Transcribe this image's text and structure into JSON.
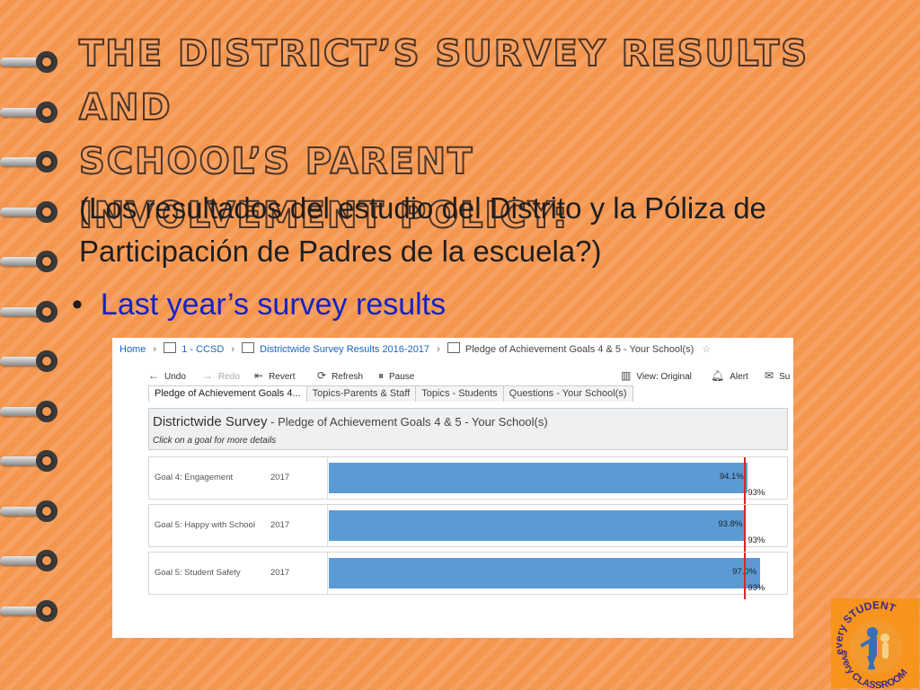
{
  "slide": {
    "title_lines": [
      "THE DISTRICT’S SURVEY RESULTS AND",
      "SCHOOL’S PARENT",
      "INVOLVEMENT POLICY:"
    ],
    "subtitle": "(Los resultados del estudio del Distrito y la Póliza de Participación de Padres de la escuela?)",
    "bullet": "Last year’s survey results"
  },
  "breadcrumb": {
    "home": "Home",
    "project": "1 - CCSD",
    "workbook": "Districtwide Survey Results 2016-2017",
    "view": "Pledge of Achievement Goals 4 & 5 - Your School(s)"
  },
  "toolbar": {
    "undo": "Undo",
    "redo": "Redo",
    "revert": "Revert",
    "refresh": "Refresh",
    "pause": "Pause",
    "view_original": "View: Original",
    "alert": "Alert",
    "subscribe": "Su"
  },
  "tabs": [
    {
      "label": "Pledge of Achievement Goals 4..."
    },
    {
      "label": "Topics-Parents & Staff"
    },
    {
      "label": "Topics - Students"
    },
    {
      "label": "Questions - Your School(s)"
    }
  ],
  "dashboard": {
    "title": "Districtwide Survey",
    "subtitle": " - Pledge of Achievement Goals 4 & 5 - Your School(s)",
    "hint": "Click on a goal for more details"
  },
  "goals": [
    {
      "label": "Goal 4: Engagement",
      "year": "2017",
      "value": 94.1,
      "value_label": "94.1%",
      "target_label": "93%"
    },
    {
      "label": "Goal 5: Happy with School",
      "year": "2017",
      "value": 93.8,
      "value_label": "93.8%",
      "target_label": "93%"
    },
    {
      "label": "Goal 5: Student Safety",
      "year": "2017",
      "value": 97.0,
      "value_label": "97.0%",
      "target_label": "93%"
    }
  ],
  "target_value": 93,
  "colors": {
    "bar": "#5b9bd5",
    "reference_line": "#d62728",
    "background": "#f5964f"
  },
  "logo": {
    "text_top": "every STUDENT",
    "text_bottom": "every CLASSROOM"
  }
}
